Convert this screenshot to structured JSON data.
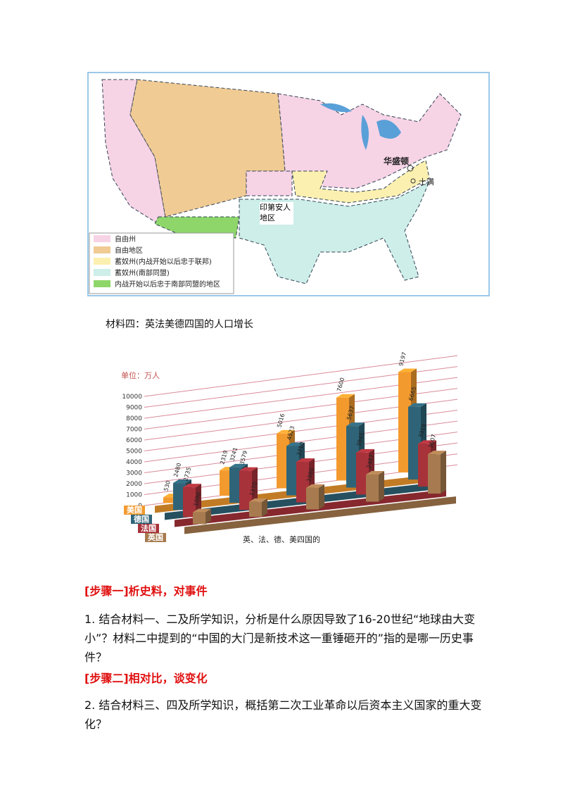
{
  "map": {
    "labels": [
      "华盛顿",
      "士满",
      "印第安人地区"
    ],
    "legend": [
      {
        "label": "自由州",
        "color": "#f7d3e6"
      },
      {
        "label": "自由地区",
        "color": "#f0cb94"
      },
      {
        "label": "蓄奴州(内战开始以后忠于联邦)",
        "color": "#fbf0b0"
      },
      {
        "label": "蓄奴州(南部同盟)",
        "color": "#cdeee9"
      },
      {
        "label": "内战开始以后忠于南部同盟的地区",
        "color": "#8ed66a"
      }
    ]
  },
  "caption": "材料四：英法美德四国的人口增长",
  "chart_data": {
    "type": "bar3d",
    "unit_label": "单位：万人",
    "caption": "英、法、德、美四国的",
    "ylim": [
      0,
      10000
    ],
    "yticks": [
      0,
      1000,
      2000,
      3000,
      4000,
      5000,
      6000,
      7000,
      8000,
      9000,
      10000
    ],
    "series": [
      {
        "name": "美国",
        "color": "#f39a2e",
        "values": [
          530,
          2319,
          5016,
          7600,
          9197
        ]
      },
      {
        "name": "德国",
        "color": "#2f6478",
        "values": [
          2480,
          3241,
          4523,
          5637,
          6665
        ]
      },
      {
        "name": "法国",
        "color": "#a8323a",
        "values": [
          2735,
          3579,
          3710,
          3845,
          3919
        ]
      },
      {
        "name": "英国",
        "color": "#a77b4f",
        "values": [
          1090,
          1370,
          1980,
          2487,
          3607
        ]
      }
    ]
  },
  "sections": [
    {
      "heading": "[步骤一]析史料，对事件",
      "text": "1. 结合材料一、二及所学知识，分析是什么原因导致了16-20世纪“地球由大变小”？材料二中提到的“中国的大门是新技术这一重锤砸开的”指的是哪一历史事件？"
    },
    {
      "heading": "[步骤二]相对比，谈变化",
      "text": "2. 结合材料三、四及所学知识，概括第二次工业革命以后资本主义国家的重大变化？"
    }
  ]
}
